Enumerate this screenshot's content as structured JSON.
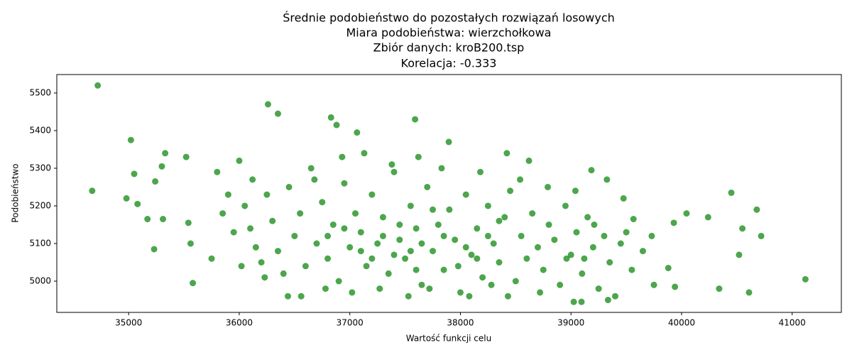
{
  "chart_data": {
    "type": "scatter",
    "title": [
      "Średnie podobieństwo do pozostałych rozwiązań losowych",
      "Miara podobieństwa: wierzchołkowa",
      "Zbiór danych: kroB200.tsp",
      "Korelacja: -0.333"
    ],
    "x_label": "Wartość funkcji celu",
    "y_label": "Podobieństwo",
    "color": "#008000",
    "alpha": 0.7,
    "x": [
      34720,
      34670,
      35020,
      34980,
      35050,
      35080,
      35170,
      35230,
      35240,
      35300,
      35310,
      35330,
      35520,
      35560,
      35540,
      35580,
      36260,
      36350,
      36830,
      36880,
      37590,
      40450,
      40680,
      40720,
      41120,
      40610,
      40520,
      40550,
      40340,
      40240,
      40045,
      39940,
      39880,
      39930,
      39730,
      39185,
      39325,
      39475,
      39565,
      39025,
      39095,
      39335,
      38620,
      37895,
      38420,
      37065,
      36000,
      36050,
      36100,
      36150,
      36200,
      36250,
      36300,
      36350,
      36400,
      36450,
      36500,
      36550,
      36600,
      36650,
      36700,
      36750,
      36800,
      36850,
      36900,
      36950,
      37000,
      37050,
      37100,
      37150,
      37200,
      37250,
      37300,
      37350,
      37400,
      37450,
      37500,
      37550,
      37600,
      37650,
      37700,
      37750,
      37800,
      37850,
      37900,
      37950,
      38000,
      38050,
      38100,
      38150,
      38200,
      38250,
      38300,
      38350,
      38400,
      38450,
      38500,
      38550,
      38600,
      38650,
      38700,
      38750,
      38800,
      38850,
      38900,
      38950,
      39000,
      39050,
      39100,
      39150,
      39200,
      39250,
      39300,
      39350,
      39450,
      39550,
      39650,
      39750,
      35750,
      35800,
      35850,
      35900,
      35950,
      36020,
      36120,
      36230,
      36440,
      36560,
      36680,
      36780,
      36930,
      37020,
      37130,
      37270,
      37380,
      37530,
      37620,
      37720,
      37830,
      37980,
      38080,
      38180,
      38280,
      38430,
      38540,
      38720,
      38790,
      38960,
      39040,
      39120,
      39210,
      39400,
      39500,
      37300,
      37400,
      37550,
      37650,
      37850,
      38050,
      38150,
      37200,
      37450,
      37600,
      37750,
      38250,
      38350,
      36800,
      36950,
      37100
    ],
    "values": [
      5520,
      5240,
      5375,
      5220,
      5285,
      5205,
      5165,
      5085,
      5265,
      5305,
      5165,
      5340,
      5330,
      5100,
      5155,
      4995,
      5470,
      5445,
      5435,
      5415,
      5430,
      5235,
      5190,
      5120,
      5005,
      4970,
      5070,
      5140,
      4980,
      5170,
      5180,
      4985,
      5035,
      5155,
      5120,
      5295,
      5270,
      5220,
      5165,
      4945,
      4945,
      4950,
      5320,
      5370,
      5340,
      5395,
      5320,
      5200,
      5140,
      5090,
      5050,
      5230,
      5160,
      5080,
      5020,
      5250,
      5120,
      5180,
      5040,
      5300,
      5100,
      5210,
      5060,
      5150,
      5000,
      5260,
      5090,
      5180,
      5130,
      5040,
      5230,
      5100,
      5170,
      5020,
      5290,
      5110,
      5060,
      5200,
      5140,
      4990,
      5250,
      5080,
      5150,
      5030,
      5190,
      5110,
      4970,
      5230,
      5070,
      5140,
      5010,
      5200,
      5100,
      5050,
      5170,
      5240,
      5000,
      5120,
      5060,
      5180,
      5090,
      5030,
      5150,
      5110,
      4990,
      5200,
      5070,
      5130,
      5020,
      5170,
      5090,
      4980,
      5120,
      5050,
      5100,
      5030,
      5080,
      4990,
      5060,
      5290,
      5180,
      5230,
      5130,
      5040,
      5270,
      5010,
      4960,
      4960,
      5270,
      4980,
      5330,
      4970,
      5340,
      4980,
      5310,
      4960,
      5330,
      4980,
      5300,
      5040,
      4960,
      5290,
      4990,
      4960,
      5270,
      4970,
      5250,
      5060,
      5240,
      5060,
      5150,
      4960,
      5130,
      5120,
      5070,
      5080,
      5100,
      5120,
      5090,
      5060,
      5060,
      5150,
      5030,
      5190,
      5120,
      5160,
      5120,
      5140,
      5080
    ],
    "xlim": [
      34350,
      41445
    ],
    "ylim": [
      4917,
      5549
    ],
    "xticks": [
      35000,
      36000,
      37000,
      38000,
      39000,
      40000,
      41000
    ],
    "yticks": [
      5000,
      5100,
      5200,
      5300,
      5400,
      5500
    ]
  }
}
